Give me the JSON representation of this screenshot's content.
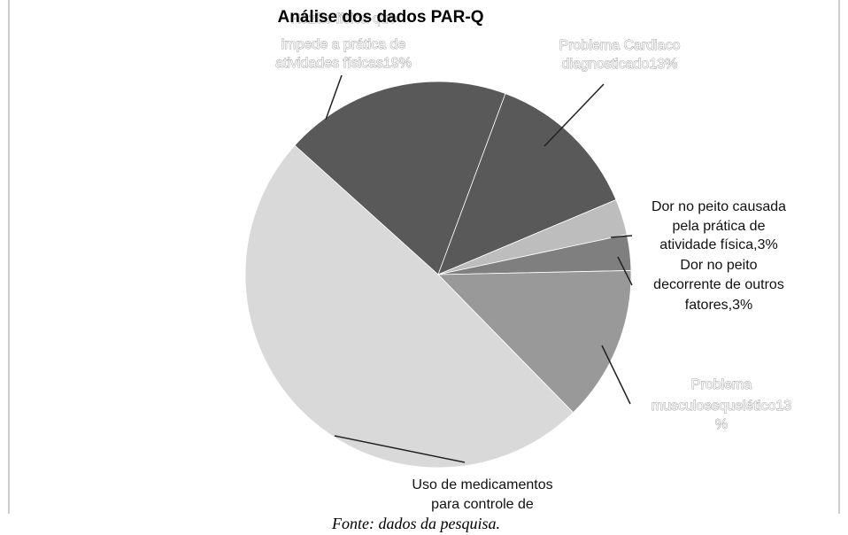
{
  "chart_data": {
    "type": "pie",
    "title": "Análise dos dados PAR-Q",
    "labels": [
      [
        "Razão física que",
        "impede a prática de",
        "atividades físicas19%"
      ],
      [
        "Problema Cardiaco",
        "diagnosticado13%"
      ],
      [
        "Dor no peito causada",
        "pela prática de",
        "atividade física,3%"
      ],
      [
        "Dor no peito",
        "decorrente de outros",
        "fatores,3%"
      ],
      [
        "Problema",
        "musculoesquelético13",
        "%"
      ],
      [
        "Uso de medicamentos",
        "para controle de"
      ]
    ],
    "values": [
      19,
      13,
      3,
      3,
      13,
      49
    ],
    "colors": [
      "#595959",
      "#595959",
      "#bdbdbd",
      "#7f7f7f",
      "#999999",
      "#d9d9d9"
    ],
    "caption": "Fonte: dados da pesquisa."
  }
}
